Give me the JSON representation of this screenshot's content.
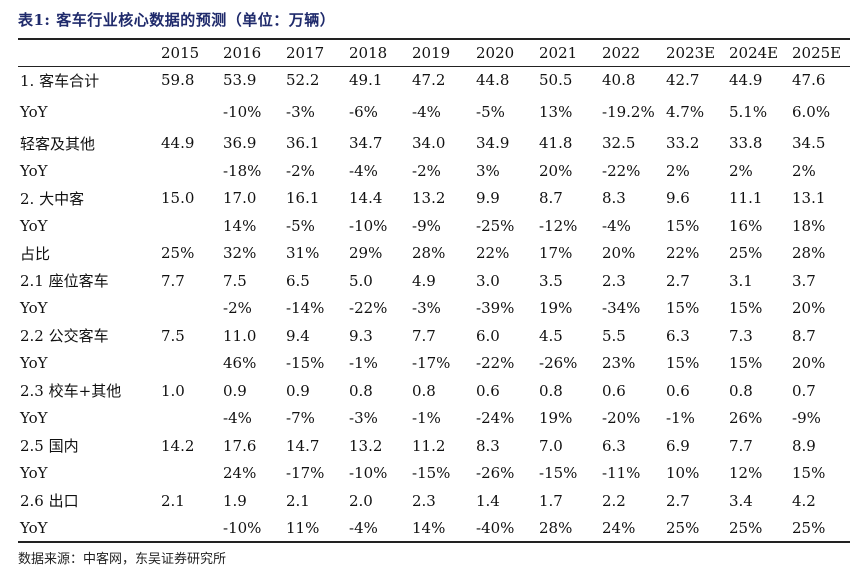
{
  "title": "表1: 客车行业核心数据的预测（单位：万辆）",
  "columns": [
    "",
    "2015",
    "2016",
    "2017",
    "2018",
    "2019",
    "2020",
    "2021",
    "2022",
    "2023E",
    "2024E",
    "2025E"
  ],
  "rows": [
    {
      "label": "1. 客车合计",
      "values": [
        "59.8",
        "53.9",
        "52.2",
        "49.1",
        "47.2",
        "44.8",
        "50.5",
        "40.8",
        "42.7",
        "44.9",
        "47.6"
      ]
    },
    {
      "label": "YoY",
      "values": [
        "",
        "-10%",
        "-3%",
        "-6%",
        "-4%",
        "-5%",
        "13%",
        "-19.2%",
        "4.7%",
        "5.1%",
        "6.0%"
      ]
    },
    {
      "label": "轻客及其他",
      "values": [
        "44.9",
        "36.9",
        "36.1",
        "34.7",
        "34.0",
        "34.9",
        "41.8",
        "32.5",
        "33.2",
        "33.8",
        "34.5"
      ]
    },
    {
      "label": "YoY",
      "values": [
        "",
        "-18%",
        "-2%",
        "-4%",
        "-2%",
        "3%",
        "20%",
        "-22%",
        "2%",
        "2%",
        "2%"
      ]
    },
    {
      "label": "2. 大中客",
      "values": [
        "15.0",
        "17.0",
        "16.1",
        "14.4",
        "13.2",
        "9.9",
        "8.7",
        "8.3",
        "9.6",
        "11.1",
        "13.1"
      ]
    },
    {
      "label": "YoY",
      "values": [
        "",
        "14%",
        "-5%",
        "-10%",
        "-9%",
        "-25%",
        "-12%",
        "-4%",
        "15%",
        "16%",
        "18%"
      ]
    },
    {
      "label": "占比",
      "values": [
        "25%",
        "32%",
        "31%",
        "29%",
        "28%",
        "22%",
        "17%",
        "20%",
        "22%",
        "25%",
        "28%"
      ]
    },
    {
      "label": "2.1 座位客车",
      "values": [
        "7.7",
        "7.5",
        "6.5",
        "5.0",
        "4.9",
        "3.0",
        "3.5",
        "2.3",
        "2.7",
        "3.1",
        "3.7"
      ]
    },
    {
      "label": "YoY",
      "values": [
        "",
        "-2%",
        "-14%",
        "-22%",
        "-3%",
        "-39%",
        "19%",
        "-34%",
        "15%",
        "15%",
        "20%"
      ]
    },
    {
      "label": "2.2 公交客车",
      "values": [
        "7.5",
        "11.0",
        "9.4",
        "9.3",
        "7.7",
        "6.0",
        "4.5",
        "5.5",
        "6.3",
        "7.3",
        "8.7"
      ]
    },
    {
      "label": "YoY",
      "values": [
        "",
        "46%",
        "-15%",
        "-1%",
        "-17%",
        "-22%",
        "-26%",
        "23%",
        "15%",
        "15%",
        "20%"
      ]
    },
    {
      "label": "2.3 校车+其他",
      "values": [
        "1.0",
        "0.9",
        "0.9",
        "0.8",
        "0.8",
        "0.6",
        "0.8",
        "0.6",
        "0.6",
        "0.8",
        "0.7"
      ]
    },
    {
      "label": "YoY",
      "values": [
        "",
        "-4%",
        "-7%",
        "-3%",
        "-1%",
        "-24%",
        "19%",
        "-20%",
        "-1%",
        "26%",
        "-9%"
      ]
    },
    {
      "label": "2.5 国内",
      "values": [
        "14.2",
        "17.6",
        "14.7",
        "13.2",
        "11.2",
        "8.3",
        "7.0",
        "6.3",
        "6.9",
        "7.7",
        "8.9"
      ]
    },
    {
      "label": "YoY",
      "values": [
        "",
        "24%",
        "-17%",
        "-10%",
        "-15%",
        "-26%",
        "-15%",
        "-11%",
        "10%",
        "12%",
        "15%"
      ]
    },
    {
      "label": "2.6 出口",
      "values": [
        "2.1",
        "1.9",
        "2.1",
        "2.0",
        "2.3",
        "1.4",
        "1.7",
        "2.2",
        "2.7",
        "3.4",
        "4.2"
      ]
    },
    {
      "label": "YoY",
      "values": [
        "",
        "-10%",
        "11%",
        "-4%",
        "14%",
        "-40%",
        "28%",
        "24%",
        "25%",
        "25%",
        "25%"
      ]
    }
  ],
  "source": "数据来源：中客网，东吴证券研究所"
}
